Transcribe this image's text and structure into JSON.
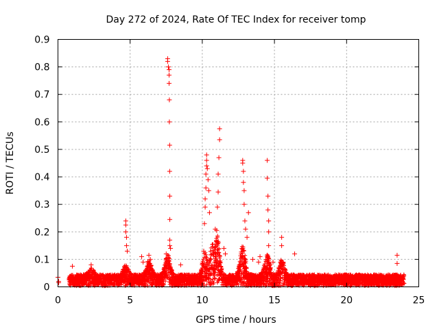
{
  "chart_data": {
    "type": "scatter",
    "title": "Day 272 of 2024, Rate Of TEC Index for receiver tomp",
    "xlabel": "GPS time / hours",
    "ylabel": "ROTI / TECUs",
    "xlim": [
      0,
      25
    ],
    "ylim": [
      0,
      0.9
    ],
    "xticks": [
      "0",
      "5",
      "10",
      "15",
      "20",
      "25"
    ],
    "yticks": [
      "0",
      "0.1",
      "0.2",
      "0.3",
      "0.4",
      "0.5",
      "0.6",
      "0.7",
      "0.8",
      "0.9"
    ],
    "grid": true,
    "marker": "plus",
    "color": "#ff0000",
    "background_band": {
      "x": [
        0,
        24
      ],
      "y_range": [
        0,
        0.045
      ]
    },
    "background_bumps": [
      {
        "x": 2.3,
        "y": 0.07
      },
      {
        "x": 4.7,
        "y": 0.08
      },
      {
        "x": 6.3,
        "y": 0.1
      },
      {
        "x": 7.6,
        "y": 0.12
      },
      {
        "x": 10.2,
        "y": 0.13
      },
      {
        "x": 10.7,
        "y": 0.16
      },
      {
        "x": 11.0,
        "y": 0.2
      },
      {
        "x": 12.8,
        "y": 0.15
      },
      {
        "x": 14.5,
        "y": 0.12
      },
      {
        "x": 15.5,
        "y": 0.1
      }
    ],
    "x": [
      0.0,
      0.05,
      0.05,
      1.0,
      2.3,
      4.7,
      4.7,
      4.7,
      4.75,
      4.75,
      4.8,
      5.8,
      5.9,
      6.3,
      6.4,
      7.6,
      7.6,
      7.65,
      7.7,
      7.7,
      7.7,
      7.72,
      7.72,
      7.74,
      7.74,
      7.75,
      7.75,
      7.75,
      7.75,
      7.5,
      7.8,
      8.5,
      10.1,
      10.15,
      10.2,
      10.2,
      10.25,
      10.25,
      10.3,
      10.3,
      10.3,
      10.35,
      10.4,
      10.45,
      10.5,
      10.9,
      11.0,
      11.05,
      11.1,
      11.1,
      11.15,
      11.2,
      11.2,
      11.5,
      11.6,
      12.8,
      12.8,
      12.85,
      12.85,
      12.9,
      12.9,
      12.95,
      13.0,
      13.1,
      13.2,
      13.5,
      13.9,
      14.0,
      14.5,
      14.5,
      14.55,
      14.55,
      14.6,
      14.6,
      14.6,
      14.9,
      15.5,
      15.5,
      15.6,
      16.4,
      23.5,
      23.5
    ],
    "y": [
      0.035,
      0.02,
      0.015,
      0.075,
      0.08,
      0.24,
      0.225,
      0.2,
      0.18,
      0.15,
      0.13,
      0.11,
      0.09,
      0.115,
      0.1,
      0.83,
      0.82,
      0.8,
      0.79,
      0.77,
      0.74,
      0.68,
      0.6,
      0.515,
      0.42,
      0.33,
      0.245,
      0.17,
      0.15,
      0.12,
      0.14,
      0.08,
      0.13,
      0.23,
      0.29,
      0.32,
      0.36,
      0.41,
      0.44,
      0.46,
      0.48,
      0.43,
      0.39,
      0.35,
      0.27,
      0.21,
      0.205,
      0.29,
      0.345,
      0.41,
      0.47,
      0.535,
      0.575,
      0.14,
      0.12,
      0.46,
      0.45,
      0.42,
      0.38,
      0.35,
      0.3,
      0.24,
      0.21,
      0.18,
      0.27,
      0.1,
      0.09,
      0.11,
      0.46,
      0.395,
      0.33,
      0.28,
      0.24,
      0.2,
      0.15,
      0.09,
      0.18,
      0.15,
      0.09,
      0.12,
      0.115,
      0.085
    ]
  }
}
